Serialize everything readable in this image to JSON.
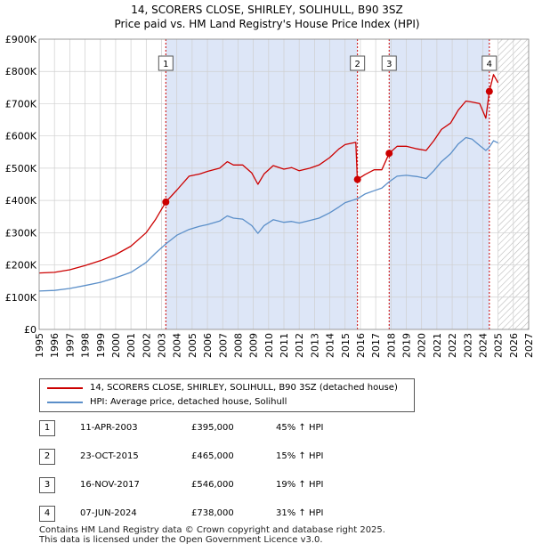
{
  "chart_title": "14, SCORERS CLOSE, SHIRLEY, SOLIHULL, B90 3SZ",
  "chart_subtitle": "Price paid vs. HM Land Registry's House Price Index (HPI)",
  "colors": {
    "property": "#cc0000",
    "hpi": "#5b8fc9",
    "shade": "#dde6f7",
    "grid": "#cfcfcf",
    "hatch": "#bbbbbb"
  },
  "chart_data": {
    "type": "line",
    "title": "14, SCORERS CLOSE, SHIRLEY, SOLIHULL, B90 3SZ",
    "subtitle": "Price paid vs. HM Land Registry's House Price Index (HPI)",
    "xlim": [
      1995,
      2027
    ],
    "ylim": [
      0,
      900000
    ],
    "x_ticks": [
      "1995",
      "1996",
      "1997",
      "1998",
      "1999",
      "2000",
      "2001",
      "2002",
      "2003",
      "2004",
      "2005",
      "2006",
      "2007",
      "2008",
      "2009",
      "2010",
      "2011",
      "2012",
      "2013",
      "2014",
      "2015",
      "2016",
      "2017",
      "2018",
      "2019",
      "2020",
      "2021",
      "2022",
      "2023",
      "2024",
      "2025",
      "2026",
      "2027"
    ],
    "y_ticks": [
      0,
      100000,
      200000,
      300000,
      400000,
      500000,
      600000,
      700000,
      800000,
      900000
    ],
    "y_tick_labels": [
      "£0",
      "£100K",
      "£200K",
      "£300K",
      "£400K",
      "£500K",
      "£600K",
      "£700K",
      "£800K",
      "£900K"
    ],
    "shaded_ranges": [
      [
        2003.28,
        2015.81
      ],
      [
        2017.88,
        2024.43
      ]
    ],
    "hatched_from": 2025.0,
    "series": [
      {
        "name": "14, SCORERS CLOSE, SHIRLEY, SOLIHULL, B90 3SZ (detached house)",
        "color": "#cc0000",
        "points": [
          [
            1995.0,
            175000
          ],
          [
            1996.0,
            177000
          ],
          [
            1997.0,
            185000
          ],
          [
            1998.0,
            198000
          ],
          [
            1999.0,
            213000
          ],
          [
            2000.0,
            232000
          ],
          [
            2001.0,
            258000
          ],
          [
            2002.0,
            300000
          ],
          [
            2002.6,
            340000
          ],
          [
            2003.28,
            395000
          ],
          [
            2004.0,
            432000
          ],
          [
            2004.8,
            475000
          ],
          [
            2005.5,
            482000
          ],
          [
            2006.0,
            490000
          ],
          [
            2006.8,
            500000
          ],
          [
            2007.3,
            520000
          ],
          [
            2007.7,
            510000
          ],
          [
            2008.3,
            510000
          ],
          [
            2008.9,
            485000
          ],
          [
            2009.3,
            450000
          ],
          [
            2009.7,
            482000
          ],
          [
            2010.3,
            508000
          ],
          [
            2011.0,
            497000
          ],
          [
            2011.5,
            502000
          ],
          [
            2012.0,
            492000
          ],
          [
            2012.7,
            500000
          ],
          [
            2013.3,
            510000
          ],
          [
            2014.0,
            533000
          ],
          [
            2014.6,
            560000
          ],
          [
            2015.0,
            573000
          ],
          [
            2015.7,
            580000
          ],
          [
            2015.8,
            465000
          ],
          [
            2016.3,
            480000
          ],
          [
            2016.9,
            495000
          ],
          [
            2017.4,
            495000
          ],
          [
            2017.88,
            546000
          ],
          [
            2018.4,
            568000
          ],
          [
            2019.0,
            568000
          ],
          [
            2019.7,
            560000
          ],
          [
            2020.3,
            555000
          ],
          [
            2020.8,
            585000
          ],
          [
            2021.3,
            620000
          ],
          [
            2021.9,
            640000
          ],
          [
            2022.4,
            680000
          ],
          [
            2022.9,
            708000
          ],
          [
            2023.3,
            705000
          ],
          [
            2023.8,
            700000
          ],
          [
            2024.2,
            655000
          ],
          [
            2024.43,
            738000
          ],
          [
            2024.7,
            790000
          ],
          [
            2025.0,
            765000
          ]
        ]
      },
      {
        "name": "HPI: Average price, detached house, Solihull",
        "color": "#5b8fc9",
        "points": [
          [
            1995.0,
            119000
          ],
          [
            1996.0,
            121000
          ],
          [
            1997.0,
            127000
          ],
          [
            1998.0,
            136000
          ],
          [
            1999.0,
            146000
          ],
          [
            2000.0,
            160000
          ],
          [
            2001.0,
            177000
          ],
          [
            2002.0,
            208000
          ],
          [
            2002.6,
            236000
          ],
          [
            2003.28,
            265000
          ],
          [
            2004.0,
            292000
          ],
          [
            2004.8,
            310000
          ],
          [
            2005.5,
            320000
          ],
          [
            2006.0,
            325000
          ],
          [
            2006.8,
            336000
          ],
          [
            2007.3,
            352000
          ],
          [
            2007.7,
            345000
          ],
          [
            2008.3,
            342000
          ],
          [
            2008.9,
            322000
          ],
          [
            2009.3,
            298000
          ],
          [
            2009.7,
            322000
          ],
          [
            2010.3,
            340000
          ],
          [
            2011.0,
            332000
          ],
          [
            2011.5,
            335000
          ],
          [
            2012.0,
            330000
          ],
          [
            2012.7,
            338000
          ],
          [
            2013.3,
            345000
          ],
          [
            2014.0,
            362000
          ],
          [
            2014.6,
            380000
          ],
          [
            2015.0,
            393000
          ],
          [
            2015.8,
            405000
          ],
          [
            2016.3,
            420000
          ],
          [
            2016.9,
            430000
          ],
          [
            2017.4,
            438000
          ],
          [
            2017.88,
            458000
          ],
          [
            2018.4,
            475000
          ],
          [
            2019.0,
            478000
          ],
          [
            2019.7,
            474000
          ],
          [
            2020.3,
            468000
          ],
          [
            2020.8,
            492000
          ],
          [
            2021.3,
            520000
          ],
          [
            2021.9,
            545000
          ],
          [
            2022.4,
            575000
          ],
          [
            2022.9,
            595000
          ],
          [
            2023.3,
            590000
          ],
          [
            2023.8,
            570000
          ],
          [
            2024.2,
            555000
          ],
          [
            2024.43,
            565000
          ],
          [
            2024.7,
            585000
          ],
          [
            2025.0,
            578000
          ]
        ]
      }
    ],
    "sale_markers": [
      {
        "label": "1",
        "x": 2003.28,
        "y": 395000
      },
      {
        "label": "2",
        "x": 2015.81,
        "y": 465000
      },
      {
        "label": "3",
        "x": 2017.88,
        "y": 546000
      },
      {
        "label": "4",
        "x": 2024.43,
        "y": 738000
      }
    ],
    "legend_position": "below"
  },
  "legend": {
    "property_label": "14, SCORERS CLOSE, SHIRLEY, SOLIHULL, B90 3SZ (detached house)",
    "hpi_label": "HPI: Average price, detached house, Solihull"
  },
  "sales": [
    {
      "num": "1",
      "date": "11-APR-2003",
      "price": "£395,000",
      "hpi": "45% ↑ HPI"
    },
    {
      "num": "2",
      "date": "23-OCT-2015",
      "price": "£465,000",
      "hpi": "15% ↑ HPI"
    },
    {
      "num": "3",
      "date": "16-NOV-2017",
      "price": "£546,000",
      "hpi": "19% ↑ HPI"
    },
    {
      "num": "4",
      "date": "07-JUN-2024",
      "price": "£738,000",
      "hpi": "31% ↑ HPI"
    }
  ],
  "footer": {
    "line1": "Contains HM Land Registry data © Crown copyright and database right 2025.",
    "line2": "This data is licensed under the Open Government Licence v3.0."
  }
}
